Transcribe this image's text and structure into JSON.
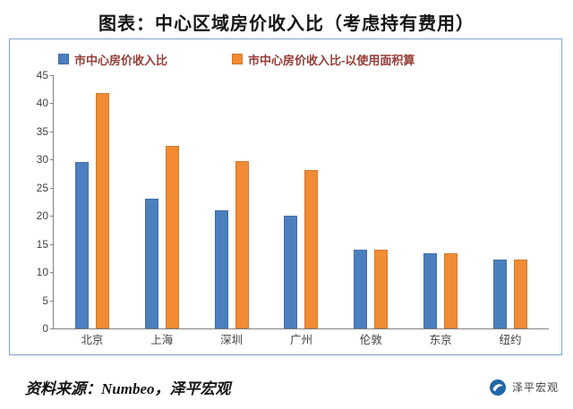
{
  "title": "图表：中心区域房价收入比（考虑持有费用）",
  "chart_data": {
    "type": "bar",
    "title": "中心区域房价收入比（考虑持有费用）",
    "categories": [
      "北京",
      "上海",
      "深圳",
      "广州",
      "伦敦",
      "东京",
      "纽约"
    ],
    "series": [
      {
        "name": "市中心房价收入比",
        "color": "#4c7fbe",
        "values": [
          29.5,
          23,
          21,
          20,
          14,
          13.4,
          12.2
        ]
      },
      {
        "name": "市中心房价收入比-以使用面积算",
        "color": "#f18b34",
        "values": [
          41.9,
          32.5,
          29.7,
          28.2,
          14,
          13.4,
          12.2
        ]
      }
    ],
    "xlabel": "",
    "ylabel": "",
    "ylim": [
      0,
      45
    ],
    "ytick_step": 5,
    "grid": false,
    "legend_position": "top-left"
  },
  "footer": {
    "source": "资料来源：Numbeo，泽平宏观",
    "brand": "泽平宏观"
  },
  "colors": {
    "series1": "#4c7fbe",
    "series2": "#f18b34",
    "legend_text": "#963b35",
    "box_border": "#7fa0c8"
  },
  "icons": {
    "brand_logo": "zeping-macro-logo-icon"
  }
}
